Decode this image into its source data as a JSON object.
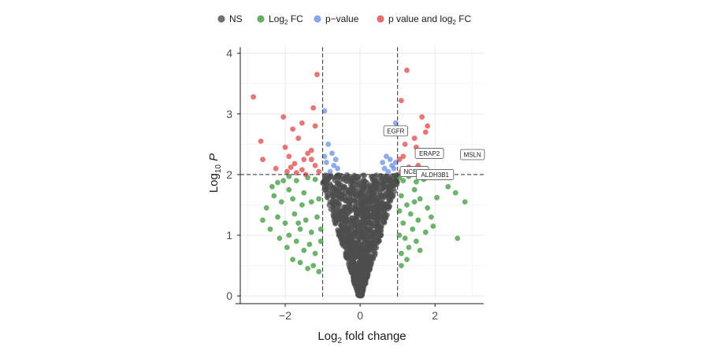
{
  "chart_data": {
    "type": "scatter",
    "title": "",
    "xlim": [
      -3.2,
      3.3
    ],
    "ylim": [
      -0.05,
      4.1
    ],
    "x_ticks": [
      -2,
      0,
      2
    ],
    "y_ticks": [
      0,
      1,
      2,
      3,
      4
    ],
    "x_tick_labels": [
      "−2",
      "0",
      "2"
    ],
    "y_tick_labels": [
      "0",
      "1",
      "2",
      "3",
      "4"
    ],
    "xlabel": {
      "prefix": "Log",
      "sub": "2",
      "suffix": " fold change"
    },
    "ylabel": {
      "prefix": "Log",
      "sub": "10",
      "suffix": " P"
    },
    "thresholds": {
      "log2fc": [
        -1,
        1
      ],
      "log10p": 2
    },
    "grid": true,
    "legend_position": "top",
    "legend": [
      {
        "key": "ns",
        "parts": [
          {
            "t": "NS"
          }
        ]
      },
      {
        "key": "fc",
        "parts": [
          {
            "t": "Log"
          },
          {
            "t": "2",
            "sub": true
          },
          {
            "t": " FC"
          }
        ]
      },
      {
        "key": "p",
        "parts": [
          {
            "t": "p−value"
          }
        ]
      },
      {
        "key": "both",
        "parts": [
          {
            "t": "p    value and log"
          },
          {
            "t": "2",
            "sub": true
          },
          {
            "t": " FC"
          }
        ]
      }
    ],
    "colors": {
      "ns": "#4d4d4d",
      "fc": "#3c9a3c",
      "p": "#6b8ee6",
      "both": "#e04848"
    },
    "series": [
      {
        "name": "NS",
        "key": "ns",
        "points": []
      },
      {
        "name": "Log2 FC",
        "key": "fc",
        "points": [
          [
            -1.9,
            1.97
          ],
          [
            -2.05,
            1.9
          ],
          [
            -2.2,
            1.87
          ],
          [
            -1.7,
            1.9
          ],
          [
            -1.4,
            1.95
          ],
          [
            -1.2,
            1.92
          ],
          [
            -2.3,
            1.65
          ],
          [
            -2.1,
            1.55
          ],
          [
            -1.8,
            1.6
          ],
          [
            -1.5,
            1.7
          ],
          [
            -1.3,
            1.55
          ],
          [
            -1.1,
            1.6
          ],
          [
            -2.6,
            1.25
          ],
          [
            -2.5,
            1.45
          ],
          [
            -2.4,
            1.1
          ],
          [
            -2.2,
            1.3
          ],
          [
            -2.0,
            1.2
          ],
          [
            -1.9,
            1.0
          ],
          [
            -1.75,
            1.35
          ],
          [
            -1.6,
            1.1
          ],
          [
            -1.45,
            1.25
          ],
          [
            -1.3,
            1.05
          ],
          [
            -1.15,
            1.3
          ],
          [
            -1.05,
            1.1
          ],
          [
            -2.15,
            0.95
          ],
          [
            -1.95,
            0.8
          ],
          [
            -1.7,
            0.9
          ],
          [
            -1.5,
            0.75
          ],
          [
            -1.35,
            0.85
          ],
          [
            -1.2,
            0.7
          ],
          [
            -1.8,
            0.6
          ],
          [
            -1.6,
            0.55
          ],
          [
            -1.4,
            0.45
          ],
          [
            -1.25,
            0.5
          ],
          [
            -1.1,
            0.4
          ],
          [
            -1.9,
            1.75
          ],
          [
            -2.35,
            1.8
          ],
          [
            -1.55,
            1.5
          ],
          [
            -1.65,
            1.2
          ],
          [
            -1.05,
            0.9
          ],
          [
            1.05,
            1.95
          ],
          [
            1.15,
            1.9
          ],
          [
            1.3,
            1.97
          ],
          [
            1.5,
            1.88
          ],
          [
            1.7,
            1.92
          ],
          [
            1.45,
            1.75
          ],
          [
            1.1,
            1.65
          ],
          [
            1.25,
            1.5
          ],
          [
            1.6,
            1.6
          ],
          [
            1.8,
            1.45
          ],
          [
            1.35,
            1.35
          ],
          [
            1.05,
            1.4
          ],
          [
            1.15,
            1.2
          ],
          [
            1.4,
            1.1
          ],
          [
            1.55,
            1.25
          ],
          [
            1.75,
            1.05
          ],
          [
            1.95,
            1.15
          ],
          [
            1.2,
            0.95
          ],
          [
            1.5,
            0.9
          ],
          [
            1.05,
            1.0
          ],
          [
            1.3,
            0.8
          ],
          [
            1.1,
            0.7
          ],
          [
            1.6,
            0.75
          ],
          [
            1.25,
            0.6
          ],
          [
            1.1,
            0.5
          ],
          [
            1.45,
            1.55
          ],
          [
            1.9,
            1.3
          ],
          [
            2.35,
            1.8
          ],
          [
            2.55,
            1.7
          ],
          [
            2.8,
            1.55
          ],
          [
            2.6,
            0.95
          ],
          [
            2.05,
            1.62
          ]
        ]
      },
      {
        "name": "p-value",
        "key": "p",
        "points": [
          [
            -0.95,
            3.05
          ],
          [
            -0.85,
            2.5
          ],
          [
            -0.75,
            2.35
          ],
          [
            -0.9,
            2.2
          ],
          [
            -0.7,
            2.15
          ],
          [
            -0.8,
            2.05
          ],
          [
            -0.6,
            2.1
          ],
          [
            -0.95,
            2.3
          ],
          [
            -0.65,
            2.25
          ],
          [
            0.95,
            2.75
          ],
          [
            0.95,
            2.85
          ],
          [
            0.7,
            2.3
          ],
          [
            0.8,
            2.25
          ],
          [
            0.85,
            2.15
          ],
          [
            0.65,
            2.1
          ],
          [
            0.75,
            2.05
          ],
          [
            0.9,
            2.1
          ],
          [
            0.6,
            2.2
          ],
          [
            0.95,
            2.2
          ]
        ]
      },
      {
        "name": "p value and log2 FC",
        "key": "both",
        "points": [
          [
            -2.85,
            3.28
          ],
          [
            -1.15,
            3.65
          ],
          [
            -1.25,
            3.1
          ],
          [
            -2.05,
            2.95
          ],
          [
            -1.55,
            2.85
          ],
          [
            -1.8,
            2.75
          ],
          [
            -1.2,
            2.8
          ],
          [
            -2.65,
            2.55
          ],
          [
            -1.65,
            2.6
          ],
          [
            -1.3,
            2.4
          ],
          [
            -2.6,
            2.25
          ],
          [
            -2.0,
            2.45
          ],
          [
            -1.9,
            2.3
          ],
          [
            -1.5,
            2.25
          ],
          [
            -1.4,
            2.35
          ],
          [
            -1.75,
            2.18
          ],
          [
            -1.85,
            2.12
          ],
          [
            -1.95,
            2.05
          ],
          [
            -1.55,
            2.08
          ],
          [
            -1.2,
            2.15
          ],
          [
            -1.1,
            2.05
          ],
          [
            -1.45,
            2.0
          ],
          [
            -1.7,
            2.03
          ],
          [
            -2.25,
            2.1
          ],
          [
            -1.3,
            2.25
          ],
          [
            1.25,
            3.72
          ],
          [
            1.1,
            3.22
          ],
          [
            1.65,
            2.95
          ],
          [
            1.75,
            2.7
          ],
          [
            1.8,
            2.8
          ],
          [
            1.45,
            2.6
          ],
          [
            1.2,
            2.5
          ],
          [
            1.5,
            2.45
          ],
          [
            1.15,
            2.3
          ],
          [
            1.05,
            2.25
          ],
          [
            1.55,
            2.15
          ],
          [
            1.3,
            2.12
          ],
          [
            1.6,
            2.4
          ],
          [
            1.1,
            2.05
          ]
        ]
      }
    ],
    "gene_labels": [
      {
        "text": "EGFR",
        "x": 0.95,
        "y": 2.72
      },
      {
        "text": "ERAP2",
        "x": 1.85,
        "y": 2.35
      },
      {
        "text": "MSLN",
        "x": 3.0,
        "y": 2.33
      },
      {
        "text": "NCEH1",
        "x": 1.45,
        "y": 2.05
      },
      {
        "text": "ALDH3B1",
        "x": 2.0,
        "y": 2.0
      }
    ]
  }
}
